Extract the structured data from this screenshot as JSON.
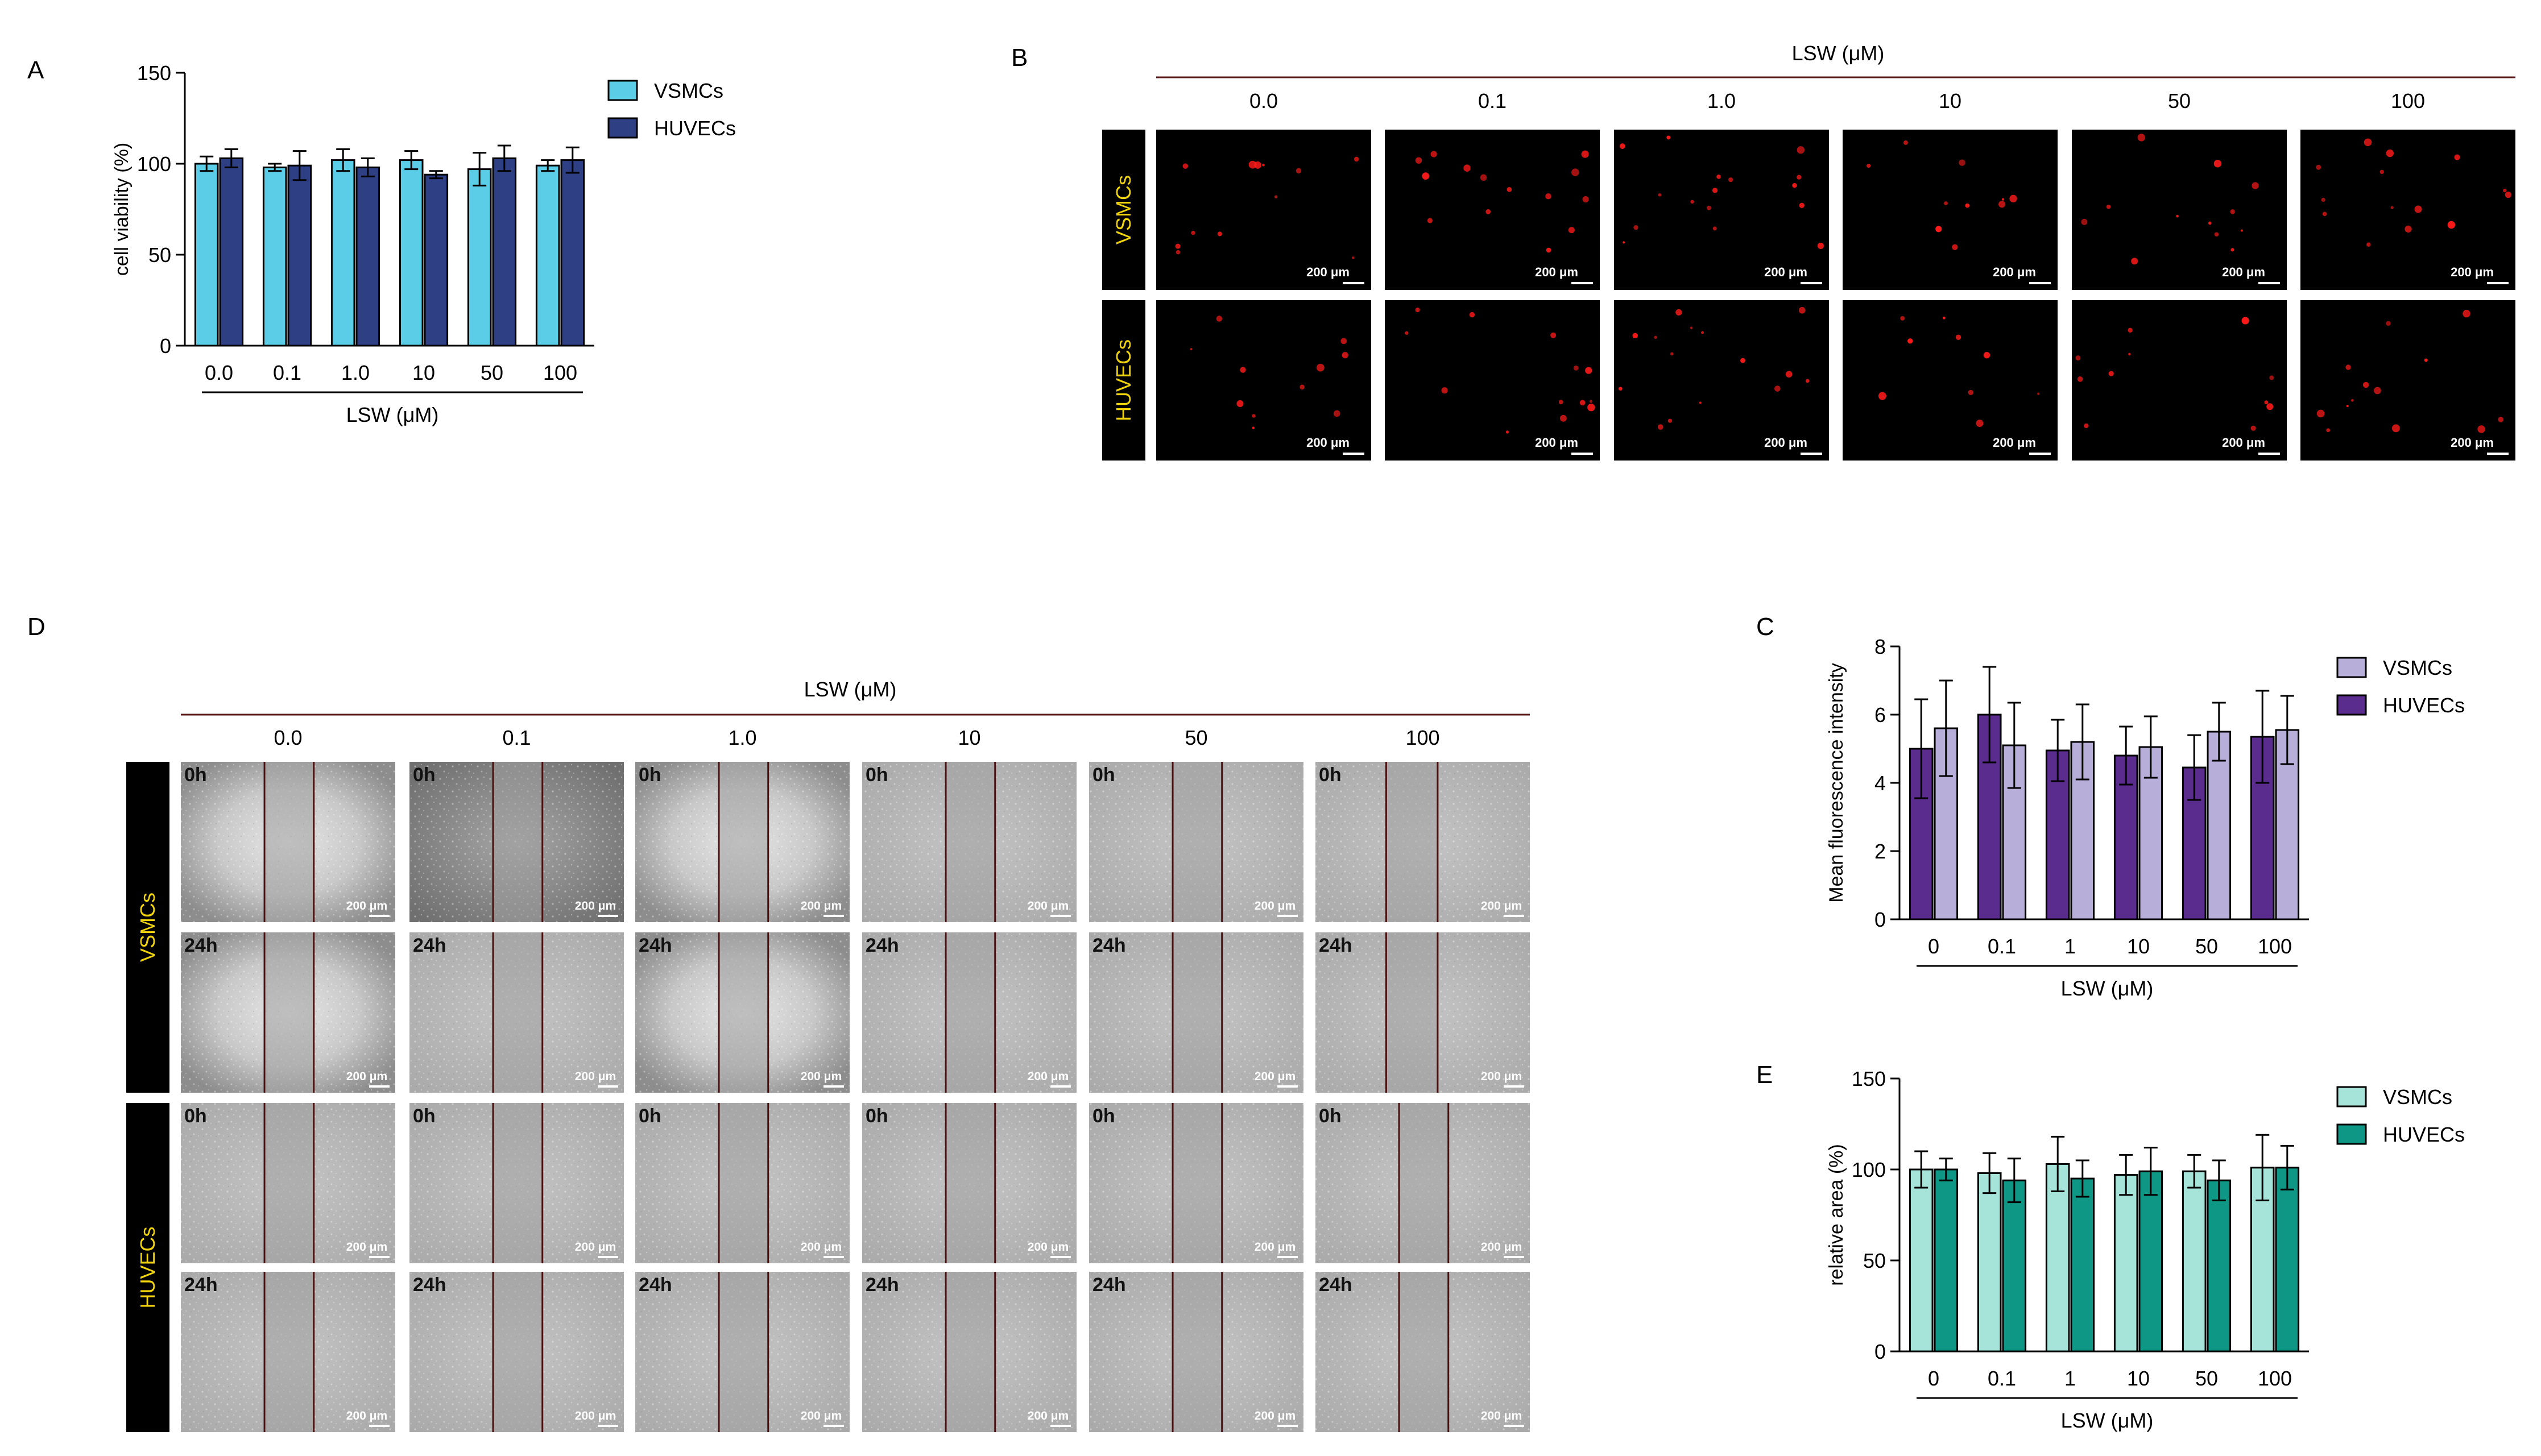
{
  "panels": {
    "a": {
      "letter": "A",
      "chart_data": {
        "type": "bar",
        "categories": [
          "0.0",
          "0.1",
          "1.0",
          "10",
          "50",
          "100"
        ],
        "series": [
          {
            "name": "VSMCs",
            "values": [
              100,
              98,
              102,
              102,
              97,
              99
            ],
            "errors": [
              4,
              2,
              6,
              5,
              9,
              3
            ]
          },
          {
            "name": "HUVECs",
            "values": [
              103,
              99,
              98,
              94,
              103,
              102
            ],
            "errors": [
              5,
              8,
              5,
              2,
              7,
              7
            ]
          }
        ],
        "xlabel": "LSW (μM)",
        "ylabel": "cell viability (%)",
        "ylim": [
          0,
          150
        ],
        "yticks": [
          0,
          50,
          100,
          150
        ],
        "legend": "top-right",
        "colors": [
          "#5ccde6",
          "#2e3f84"
        ]
      }
    },
    "b": {
      "letter": "B",
      "header": "LSW (μM)",
      "columns": [
        "0.0",
        "0.1",
        "1.0",
        "10",
        "50",
        "100"
      ],
      "rows": [
        "VSMCs",
        "HUVECs"
      ],
      "scale_label": "200 μm"
    },
    "c": {
      "letter": "C",
      "chart_data": {
        "type": "bar",
        "categories": [
          "0",
          "0.1",
          "1",
          "10",
          "50",
          "100"
        ],
        "series": [
          {
            "name": "HUVECs",
            "values": [
              5.0,
              6.0,
              4.95,
              4.8,
              4.45,
              5.35
            ],
            "errors": [
              1.45,
              1.4,
              0.9,
              0.85,
              0.95,
              1.35
            ]
          },
          {
            "name": "VSMCs",
            "values": [
              5.6,
              5.1,
              5.2,
              5.05,
              5.5,
              5.55
            ],
            "errors": [
              1.4,
              1.25,
              1.1,
              0.9,
              0.85,
              1.0
            ]
          }
        ],
        "legend_order": [
          "VSMCs",
          "HUVECs"
        ],
        "xlabel": "LSW (μM)",
        "ylabel": "Mean fluorescence intensity",
        "ylim": [
          0,
          8
        ],
        "yticks": [
          0,
          2,
          4,
          6,
          8
        ],
        "legend": "top-right",
        "colors": [
          "#5a2c8e",
          "#b7aed9"
        ]
      }
    },
    "d": {
      "letter": "D",
      "header": "LSW (μM)",
      "columns": [
        "0.0",
        "0.1",
        "1.0",
        "10",
        "50",
        "100"
      ],
      "rows": [
        "VSMCs",
        "HUVECs"
      ],
      "timepoints": [
        "0h",
        "24h"
      ],
      "scale_label": "200 μm"
    },
    "e": {
      "letter": "E",
      "chart_data": {
        "type": "bar",
        "categories": [
          "0",
          "0.1",
          "1",
          "10",
          "50",
          "100"
        ],
        "series": [
          {
            "name": "VSMCs",
            "values": [
              100,
              98,
              103,
              97,
              99,
              101
            ],
            "errors": [
              10,
              11,
              15,
              11,
              9,
              18
            ]
          },
          {
            "name": "HUVECs",
            "values": [
              100,
              94,
              95,
              99,
              94,
              101
            ],
            "errors": [
              6,
              12,
              10,
              13,
              11,
              12
            ]
          }
        ],
        "xlabel": "LSW (μM)",
        "ylabel": "relative area (%)",
        "ylim": [
          0,
          150
        ],
        "yticks": [
          0,
          50,
          100,
          150
        ],
        "legend": "top-right",
        "colors": [
          "#a6e3d9",
          "#0f9785"
        ]
      }
    }
  },
  "colors": {
    "row_label_text": "#f1d40c",
    "row_label_bg": "#000000",
    "header_rule": "#5a1a1a",
    "fluor_dot": "#ff1a1a",
    "wound_line": "#4a1010"
  }
}
